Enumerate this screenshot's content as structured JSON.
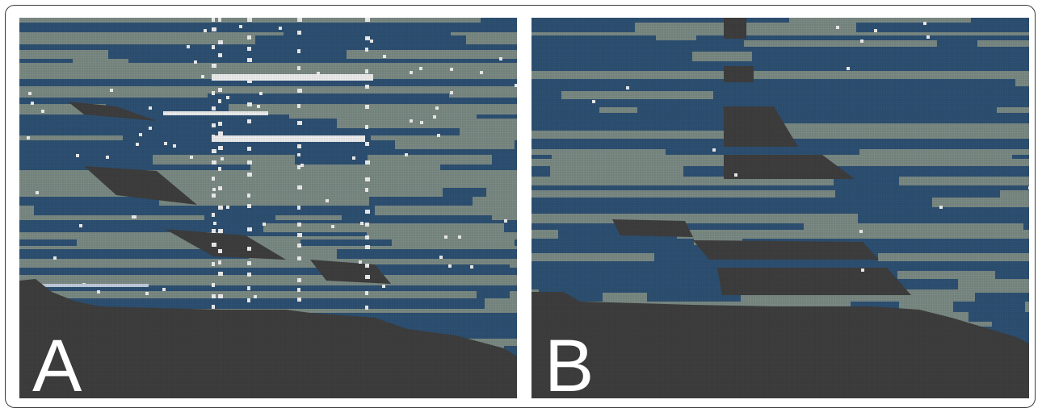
{
  "panels": {
    "a": {
      "label": "A"
    },
    "b": {
      "label": "B"
    }
  },
  "colors": {
    "blue": "#2e5174",
    "gray": "#7d8c86",
    "dark": "#3f3f3f",
    "white": "#f2f2f2",
    "pale": "#c6d1e2"
  }
}
